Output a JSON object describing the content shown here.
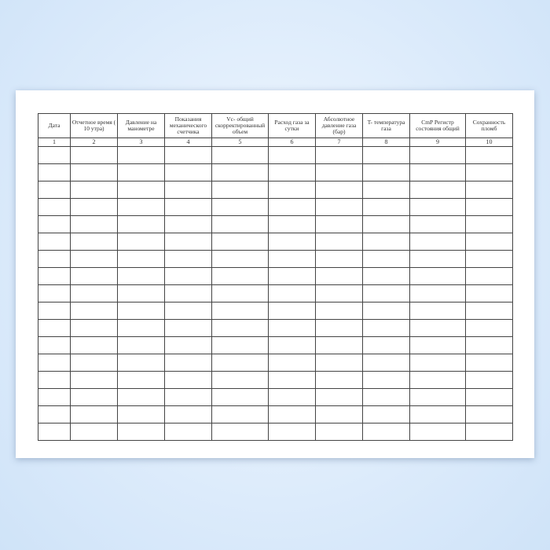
{
  "form": {
    "columns": [
      {
        "label": "Дата",
        "number": "1"
      },
      {
        "label": "Отчетное время ( 10 утра)",
        "number": "2"
      },
      {
        "label": "Давление на манометре",
        "number": "3"
      },
      {
        "label": "Показания механического счетчика",
        "number": "4"
      },
      {
        "label": "Vc- общий скорректированный объем",
        "number": "5"
      },
      {
        "label": "Расход газа за сутки",
        "number": "6"
      },
      {
        "label": "Абсолютное давление газа (бар)",
        "number": "7"
      },
      {
        "label": "T- температура газа",
        "number": "8"
      },
      {
        "label": "CmP Регистр состояния общий",
        "number": "9"
      },
      {
        "label": "Сохранность пломб",
        "number": "10"
      }
    ],
    "empty_rows": 17
  }
}
